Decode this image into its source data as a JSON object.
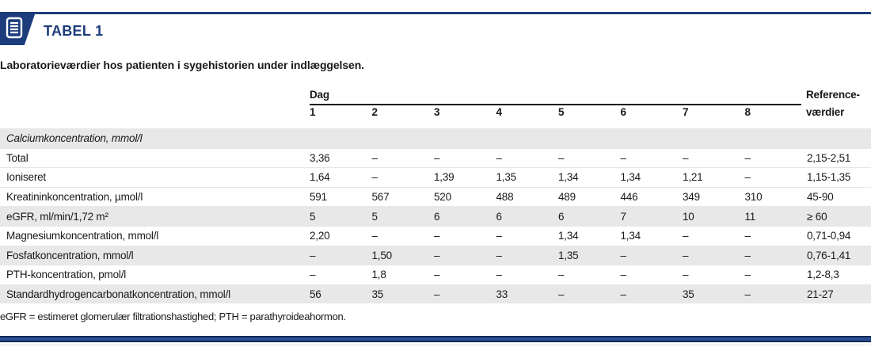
{
  "colors": {
    "accent": "#1d3c7c",
    "row_shaded": "#e8e8e8"
  },
  "header": {
    "badge_label": "TABEL 1",
    "badge_icon": "table-document-icon"
  },
  "subtitle": "Laboratorieværdier hos patienten i sygehistorien under indlæggelsen.",
  "table": {
    "day_group_label": "Dag",
    "day_columns": [
      "1",
      "2",
      "3",
      "4",
      "5",
      "6",
      "7",
      "8"
    ],
    "reference_header_line1": "Reference-",
    "reference_header_line2": "værdier",
    "rows": [
      {
        "label": "Calciumkoncentration, mmol/l",
        "style": "section",
        "shaded": true,
        "values": [
          "",
          "",
          "",
          "",
          "",
          "",
          "",
          ""
        ],
        "reference": ""
      },
      {
        "label": "Total",
        "style": "data",
        "shaded": false,
        "values": [
          "3,36",
          "–",
          "–",
          "–",
          "–",
          "–",
          "–",
          "–"
        ],
        "reference": "2,15-2,51"
      },
      {
        "label": "Ioniseret",
        "style": "data",
        "shaded": false,
        "values": [
          "1,64",
          "–",
          "1,39",
          "1,35",
          "1,34",
          "1,34",
          "1,21",
          "–"
        ],
        "reference": "1,15-1,35"
      },
      {
        "label": "Kreatininkoncentration, µmol/l",
        "style": "data",
        "shaded": false,
        "values": [
          "591",
          "567",
          "520",
          "488",
          "489",
          "446",
          "349",
          "310"
        ],
        "reference": "45-90"
      },
      {
        "label": "eGFR, ml/min/1,72 m²",
        "style": "data",
        "shaded": true,
        "values": [
          "5",
          "5",
          "6",
          "6",
          "6",
          "7",
          "10",
          "11"
        ],
        "reference": "≥ 60"
      },
      {
        "label": "Magnesiumkoncentration, mmol/l",
        "style": "data",
        "shaded": false,
        "values": [
          "2,20",
          "–",
          "–",
          "–",
          "1,34",
          "1,34",
          "–",
          "–"
        ],
        "reference": "0,71-0,94"
      },
      {
        "label": "Fosfatkoncentration, mmol/l",
        "style": "data",
        "shaded": true,
        "values": [
          "–",
          "1,50",
          "–",
          "–",
          "1,35",
          "–",
          "–",
          "–"
        ],
        "reference": "0,76-1,41"
      },
      {
        "label": "PTH-koncentration, pmol/l",
        "style": "data",
        "shaded": false,
        "values": [
          "–",
          "1,8",
          "–",
          "–",
          "–",
          "–",
          "–",
          "–"
        ],
        "reference": "1,2-8,3"
      },
      {
        "label": "Standardhydrogencarbonatkoncentration, mmol/l",
        "style": "data",
        "shaded": true,
        "values": [
          "56",
          "35",
          "–",
          "33",
          "–",
          "–",
          "35",
          "–"
        ],
        "reference": "21-27"
      }
    ]
  },
  "footnote": "eGFR = estimeret glomerulær filtrationshastighed; PTH = parathyroideahormon."
}
